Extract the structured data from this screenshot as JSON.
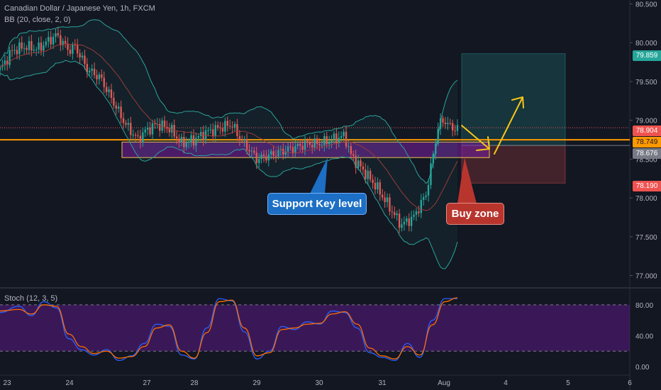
{
  "header": {
    "title": "Canadian Dollar / Japanese Yen, 1h, FXCM",
    "bb_label": "BB (20, close, 2, 0)",
    "stoch_label": "Stoch (12, 3, 5)"
  },
  "annotations": {
    "support_label": "Support Key level",
    "buy_label": "Buy zone"
  },
  "price_labels": {
    "target": "79.859",
    "last": "78.904",
    "level": "78.749",
    "entry": "78.676",
    "stop": "78.190"
  },
  "colors": {
    "background": "#131722",
    "up": "#26a69a",
    "down": "#ef5350",
    "bb_band": "#2aa39a",
    "bb_basis": "#9a3b3b",
    "support_zone": "#7b1fa2",
    "support_border": "#f0c24a",
    "level_line": "#ff9800",
    "arrow": "#f5c518",
    "stoch_k": "#2962ff",
    "stoch_d": "#ff6d00",
    "stoch_band": "#4a1a6b"
  },
  "chart_data": [
    {
      "type": "candlestick",
      "title": "Canadian Dollar / Japanese Yen, 1h, FXCM",
      "y_axis_ticks": [
        "80.500",
        "80.000",
        "79.500",
        "79.000",
        "78.500",
        "78.000",
        "77.500",
        "77.000"
      ],
      "x_axis_ticks": [
        "23",
        "24",
        "27",
        "28",
        "29",
        "30",
        "31",
        "Aug",
        "4",
        "5",
        "6"
      ],
      "ylim": [
        76.85,
        80.55
      ],
      "close_path": [
        [
          0,
          79.65
        ],
        [
          2,
          79.9
        ],
        [
          4,
          79.95
        ],
        [
          6,
          79.92
        ],
        [
          9,
          80.1
        ],
        [
          11,
          79.9
        ],
        [
          12,
          79.95
        ],
        [
          14,
          79.65
        ],
        [
          16,
          79.55
        ],
        [
          18,
          79.25
        ],
        [
          20,
          78.95
        ],
        [
          22,
          78.75
        ],
        [
          23,
          78.85
        ],
        [
          25,
          78.95
        ],
        [
          27,
          78.9
        ],
        [
          29,
          78.7
        ],
        [
          31,
          78.75
        ],
        [
          33,
          78.85
        ],
        [
          35,
          78.9
        ],
        [
          37,
          78.95
        ],
        [
          38,
          78.8
        ],
        [
          40,
          78.6
        ],
        [
          41,
          78.5
        ],
        [
          43,
          78.55
        ],
        [
          45,
          78.6
        ],
        [
          47,
          78.65
        ],
        [
          49,
          78.7
        ],
        [
          51,
          78.7
        ],
        [
          53,
          78.75
        ],
        [
          55,
          78.8
        ],
        [
          56,
          78.55
        ],
        [
          58,
          78.35
        ],
        [
          60,
          78.15
        ],
        [
          62,
          77.9
        ],
        [
          64,
          77.65
        ],
        [
          66,
          77.75
        ],
        [
          68,
          78.05
        ],
        [
          69,
          78.5
        ],
        [
          70,
          78.95
        ],
        [
          71,
          79.0
        ],
        [
          72,
          78.9
        ]
      ],
      "support_zone": [
        78.52,
        78.72
      ],
      "level_line": 78.749,
      "last_price": 78.904,
      "position": {
        "entry": 78.676,
        "target": 79.859,
        "stop": 78.19
      }
    },
    {
      "type": "line",
      "title": "Stoch (12, 3, 5)",
      "y_axis_ticks": [
        "80.00",
        "40.00",
        "0.00"
      ],
      "ylim": [
        -10,
        100
      ],
      "overbought": 80,
      "oversold": 20,
      "series": [
        {
          "name": "K",
          "points": [
            [
              0,
              70
            ],
            [
              3,
              78
            ],
            [
              5,
              66
            ],
            [
              7,
              84
            ],
            [
              9,
              76
            ],
            [
              11,
              36
            ],
            [
              13,
              22
            ],
            [
              15,
              15
            ],
            [
              17,
              22
            ],
            [
              19,
              8
            ],
            [
              21,
              14
            ],
            [
              23,
              30
            ],
            [
              25,
              55
            ],
            [
              27,
              52
            ],
            [
              29,
              15
            ],
            [
              31,
              10
            ],
            [
              33,
              50
            ],
            [
              35,
              88
            ],
            [
              37,
              85
            ],
            [
              39,
              45
            ],
            [
              41,
              10
            ],
            [
              43,
              20
            ],
            [
              45,
              52
            ],
            [
              47,
              48
            ],
            [
              49,
              58
            ],
            [
              51,
              55
            ],
            [
              53,
              72
            ],
            [
              55,
              70
            ],
            [
              57,
              50
            ],
            [
              59,
              18
            ],
            [
              61,
              12
            ],
            [
              63,
              8
            ],
            [
              65,
              30
            ],
            [
              67,
              12
            ],
            [
              69,
              60
            ],
            [
              71,
              88
            ],
            [
              73,
              88
            ]
          ]
        },
        {
          "name": "D",
          "points": [
            [
              0,
              72
            ],
            [
              3,
              74
            ],
            [
              5,
              68
            ],
            [
              7,
              80
            ],
            [
              9,
              78
            ],
            [
              11,
              42
            ],
            [
              13,
              26
            ],
            [
              15,
              17
            ],
            [
              17,
              20
            ],
            [
              19,
              11
            ],
            [
              21,
              13
            ],
            [
              23,
              26
            ],
            [
              25,
              50
            ],
            [
              27,
              54
            ],
            [
              29,
              20
            ],
            [
              31,
              11
            ],
            [
              33,
              44
            ],
            [
              35,
              84
            ],
            [
              37,
              86
            ],
            [
              39,
              50
            ],
            [
              41,
              14
            ],
            [
              43,
              18
            ],
            [
              45,
              48
            ],
            [
              47,
              50
            ],
            [
              49,
              55
            ],
            [
              51,
              56
            ],
            [
              53,
              68
            ],
            [
              55,
              71
            ],
            [
              57,
              55
            ],
            [
              59,
              24
            ],
            [
              61,
              14
            ],
            [
              63,
              10
            ],
            [
              65,
              26
            ],
            [
              67,
              15
            ],
            [
              69,
              54
            ],
            [
              71,
              84
            ],
            [
              73,
              89
            ]
          ]
        }
      ]
    }
  ]
}
